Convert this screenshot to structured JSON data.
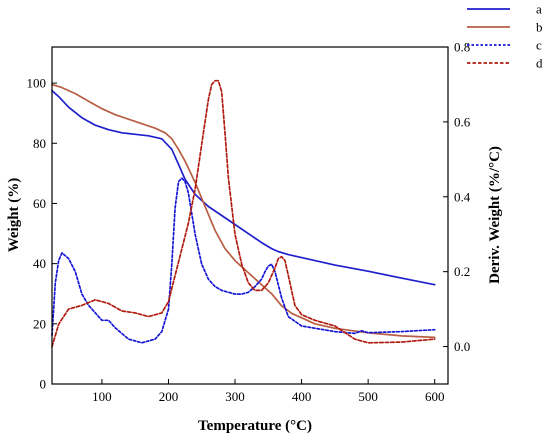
{
  "chart_data": {
    "type": "line",
    "title": "",
    "xlabel": "Temperature (°C)",
    "ylabel": "Weight (%)",
    "y2label": "Deriv. Weight (%/°C)",
    "xlim": [
      25,
      620
    ],
    "ylim": [
      0,
      112
    ],
    "y2lim": [
      -0.1,
      0.8
    ],
    "xticks": [
      "100",
      "200",
      "300",
      "400",
      "500",
      "600"
    ],
    "yticks": [
      "0",
      "20",
      "40",
      "60",
      "80",
      "100"
    ],
    "y2ticks": [
      "0.0",
      "0.2",
      "0.4",
      "0.6",
      "0.8"
    ],
    "legend_position": "top-right",
    "grid": false,
    "series": [
      {
        "name": "a",
        "axis": "left",
        "color": "#1f1fcc",
        "dash": "solid",
        "x": [
          25,
          35,
          50,
          70,
          90,
          110,
          130,
          150,
          170,
          190,
          205,
          215,
          225,
          240,
          260,
          280,
          300,
          320,
          340,
          355,
          365,
          380,
          400,
          450,
          500,
          550,
          600
        ],
        "y": [
          97.5,
          95.5,
          92,
          88.5,
          86,
          84.5,
          83.5,
          83,
          82.5,
          81.5,
          78,
          73,
          68,
          63,
          59,
          56,
          53,
          50,
          47,
          45,
          44,
          43,
          42,
          39.5,
          37.5,
          35.2,
          33
        ]
      },
      {
        "name": "b",
        "axis": "left",
        "color": "#b85e45",
        "dash": "solid",
        "x": [
          25,
          40,
          60,
          80,
          100,
          120,
          140,
          160,
          180,
          195,
          205,
          215,
          225,
          240,
          255,
          270,
          285,
          300,
          320,
          340,
          355,
          370,
          385,
          400,
          420,
          450,
          500,
          550,
          600
        ],
        "y": [
          99.5,
          98.5,
          96.5,
          94,
          91.5,
          89.5,
          88,
          86.5,
          85,
          83.5,
          81.5,
          78,
          74,
          67,
          59,
          51,
          45,
          41,
          37,
          33,
          30,
          26,
          23.5,
          22,
          20,
          18.5,
          17,
          16,
          15.5
        ]
      },
      {
        "name": "c",
        "axis": "right",
        "color": "#1515d6",
        "dash": "dotted",
        "x": [
          25,
          30,
          35,
          40,
          50,
          60,
          70,
          80,
          90,
          100,
          105,
          110,
          120,
          140,
          160,
          180,
          190,
          200,
          205,
          210,
          215,
          220,
          225,
          230,
          240,
          250,
          260,
          270,
          280,
          290,
          300,
          310,
          320,
          330,
          340,
          345,
          350,
          355,
          360,
          370,
          380,
          400,
          450,
          480,
          490,
          500,
          550,
          600
        ],
        "y": [
          0.03,
          0.17,
          0.23,
          0.25,
          0.235,
          0.2,
          0.14,
          0.11,
          0.09,
          0.07,
          0.07,
          0.07,
          0.05,
          0.02,
          0.01,
          0.02,
          0.04,
          0.1,
          0.22,
          0.37,
          0.44,
          0.45,
          0.44,
          0.41,
          0.3,
          0.22,
          0.18,
          0.16,
          0.15,
          0.145,
          0.14,
          0.14,
          0.145,
          0.16,
          0.18,
          0.2,
          0.215,
          0.22,
          0.2,
          0.13,
          0.08,
          0.055,
          0.04,
          0.035,
          0.042,
          0.037,
          0.04,
          0.045
        ]
      },
      {
        "name": "d",
        "axis": "right",
        "color": "#b01c10",
        "dash": "dashed",
        "x": [
          25,
          35,
          50,
          70,
          90,
          110,
          130,
          150,
          170,
          190,
          200,
          210,
          220,
          230,
          240,
          250,
          260,
          265,
          270,
          275,
          280,
          285,
          290,
          300,
          310,
          320,
          330,
          340,
          350,
          360,
          365,
          370,
          375,
          380,
          390,
          400,
          420,
          450,
          480,
          500,
          550,
          600
        ],
        "y": [
          0.0,
          0.06,
          0.1,
          0.11,
          0.125,
          0.115,
          0.095,
          0.09,
          0.08,
          0.09,
          0.12,
          0.19,
          0.26,
          0.33,
          0.42,
          0.54,
          0.66,
          0.7,
          0.71,
          0.71,
          0.68,
          0.57,
          0.45,
          0.3,
          0.22,
          0.17,
          0.15,
          0.15,
          0.17,
          0.21,
          0.235,
          0.24,
          0.23,
          0.19,
          0.11,
          0.085,
          0.07,
          0.055,
          0.02,
          0.01,
          0.012,
          0.02
        ]
      }
    ]
  }
}
